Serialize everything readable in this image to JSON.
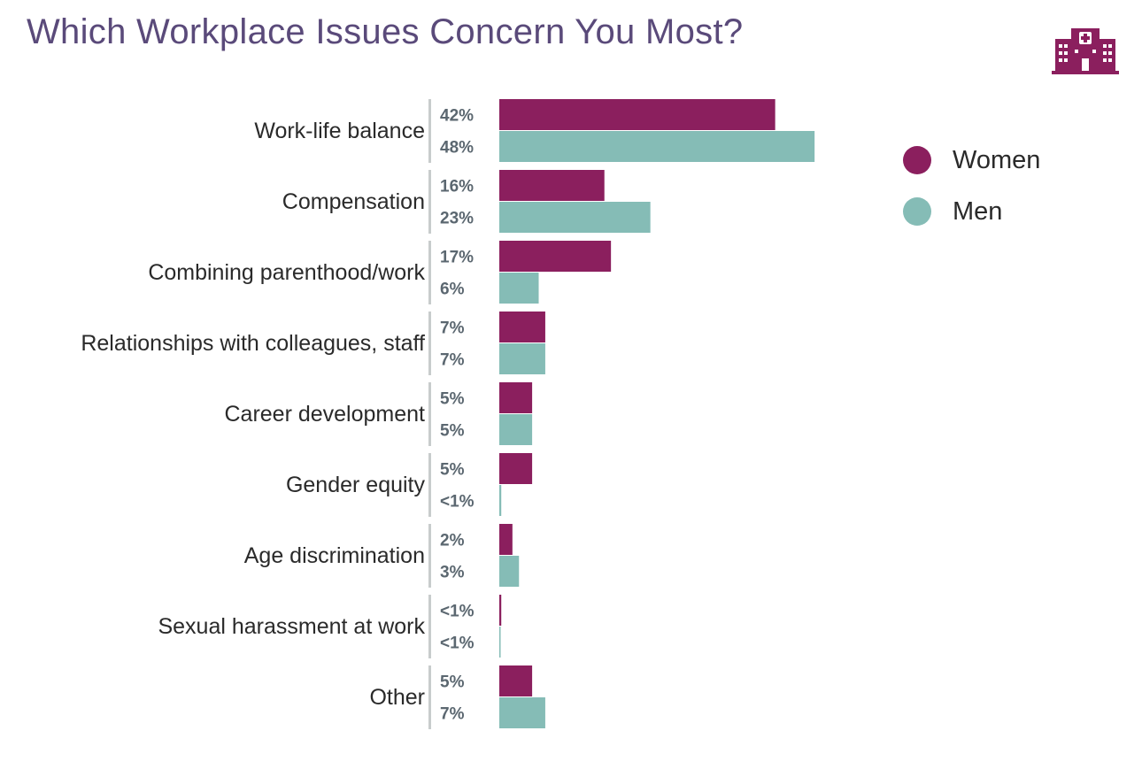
{
  "title": "Which Workplace Issues Concern You Most?",
  "logo_icon": "hospital-building-icon",
  "colors": {
    "women": "#8b1f5e",
    "men": "#85bcb6",
    "divider": "#c8cccc"
  },
  "legend": [
    {
      "name": "Women",
      "color": "#8b1f5e"
    },
    {
      "name": "Men",
      "color": "#85bcb6"
    }
  ],
  "chart_data": {
    "type": "bar",
    "orientation": "horizontal",
    "title": "Which Workplace Issues Concern You Most?",
    "categories": [
      "Work-life balance",
      "Compensation",
      "Combining parenthood/work",
      "Relationships with colleagues, staff",
      "Career development",
      "Gender equity",
      "Age discrimination",
      "Sexual harassment at work",
      "Other"
    ],
    "series": [
      {
        "name": "Women",
        "values": [
          42,
          16,
          17,
          7,
          5,
          5,
          2,
          0.3,
          5
        ],
        "labels": [
          "42%",
          "16%",
          "17%",
          "7%",
          "5%",
          "5%",
          "2%",
          "<1%",
          "5%"
        ]
      },
      {
        "name": "Men",
        "values": [
          48,
          23,
          6,
          7,
          5,
          0.3,
          3,
          0.2,
          7
        ],
        "labels": [
          "48%",
          "23%",
          "6%",
          "7%",
          "5%",
          "<1%",
          "3%",
          "<1%",
          "7%"
        ]
      }
    ],
    "xlim": [
      0,
      50
    ],
    "legend_position": "top-right",
    "grid": false
  }
}
